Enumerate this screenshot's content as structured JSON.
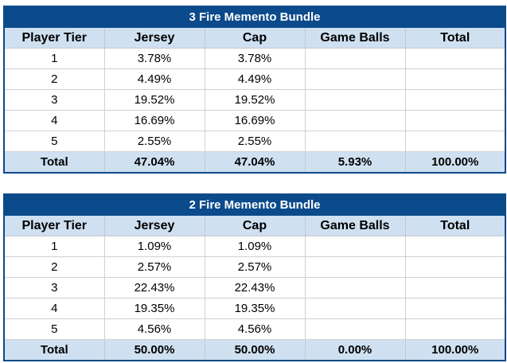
{
  "bundles": [
    {
      "title": "3 Fire Memento Bundle",
      "headers": [
        "Player Tier",
        "Jersey",
        "Cap",
        "Game Balls",
        "Total"
      ],
      "rows": [
        [
          "1",
          "3.78%",
          "3.78%",
          "",
          ""
        ],
        [
          "2",
          "4.49%",
          "4.49%",
          "",
          ""
        ],
        [
          "3",
          "19.52%",
          "19.52%",
          "",
          ""
        ],
        [
          "4",
          "16.69%",
          "16.69%",
          "",
          ""
        ],
        [
          "5",
          "2.55%",
          "2.55%",
          "",
          ""
        ]
      ],
      "total": [
        "Total",
        "47.04%",
        "47.04%",
        "5.93%",
        "100.00%"
      ]
    },
    {
      "title": "2 Fire Memento Bundle",
      "headers": [
        "Player Tier",
        "Jersey",
        "Cap",
        "Game Balls",
        "Total"
      ],
      "rows": [
        [
          "1",
          "1.09%",
          "1.09%",
          "",
          ""
        ],
        [
          "2",
          "2.57%",
          "2.57%",
          "",
          ""
        ],
        [
          "3",
          "22.43%",
          "22.43%",
          "",
          ""
        ],
        [
          "4",
          "19.35%",
          "19.35%",
          "",
          ""
        ],
        [
          "5",
          "4.56%",
          "4.56%",
          "",
          ""
        ]
      ],
      "total": [
        "Total",
        "50.00%",
        "50.00%",
        "0.00%",
        "100.00%"
      ]
    }
  ]
}
